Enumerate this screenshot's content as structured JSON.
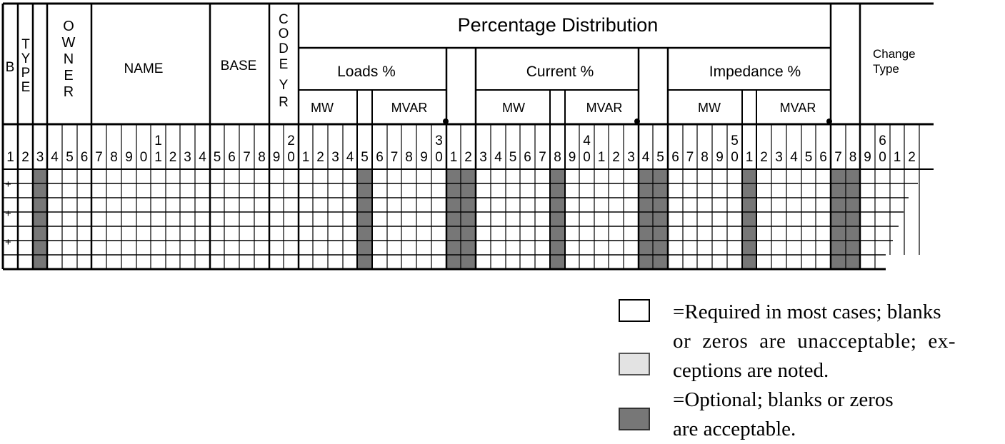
{
  "header": {
    "b": "B",
    "type": [
      "T",
      "Y",
      "P",
      "E"
    ],
    "owner": [
      "O",
      "W",
      "N",
      "E",
      "R"
    ],
    "name": "NAME",
    "base": "BASE",
    "code_yr": [
      "C",
      "O",
      "D",
      "E",
      "Y",
      "R"
    ],
    "percentage_distribution": "Percentage Distribution",
    "groups": [
      {
        "label": "Loads %",
        "sub": [
          "MW",
          "MVAR"
        ]
      },
      {
        "label": "Current %",
        "sub": [
          "MW",
          "MVAR"
        ]
      },
      {
        "label": "Impedance %",
        "sub": [
          "MW",
          "MVAR"
        ]
      }
    ],
    "change_type": [
      "Change",
      "Type"
    ]
  },
  "column_numbers": {
    "tens": {
      "11": "1",
      "20": "2",
      "30": "3",
      "40": "4",
      "50": "5",
      "60": "6"
    },
    "ones": [
      "1",
      "2",
      "3",
      "4",
      "5",
      "6",
      "7",
      "8",
      "9",
      "0",
      "1",
      "2",
      "3",
      "4",
      "5",
      "6",
      "7",
      "8",
      "9",
      "0",
      "1",
      "2",
      "3",
      "4",
      "5",
      "6",
      "7",
      "8",
      "9",
      "0",
      "1",
      "2",
      "3",
      "4",
      "5",
      "6",
      "7",
      "8",
      "9",
      "0",
      "1",
      "2",
      "3",
      "4",
      "5",
      "6",
      "7",
      "8",
      "9",
      "0",
      "1",
      "2",
      "3",
      "4",
      "5",
      "6",
      "7",
      "8",
      "9",
      "0",
      "1",
      "2"
    ]
  },
  "row_markers": [
    "+",
    "+",
    "+"
  ],
  "optional_columns": [
    3,
    25,
    31,
    32,
    38,
    44,
    45,
    51,
    57,
    58
  ],
  "colors": {
    "optional": "#777777",
    "required": "#ffffff",
    "shaded": "#e3e3e3",
    "line": "#000000"
  },
  "legend": {
    "required_text": [
      "=Required in most cases; blanks",
      "or zeros are unacceptable; ex-",
      "ceptions are noted."
    ],
    "optional_text": [
      "=Optional; blanks or zeros",
      "are acceptable."
    ]
  }
}
